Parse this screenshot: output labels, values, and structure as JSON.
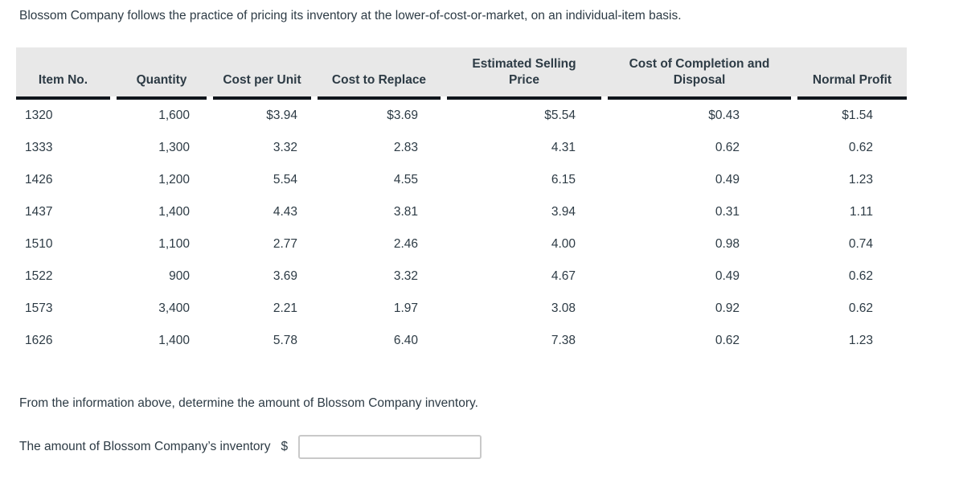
{
  "intro": {
    "text": "Blossom Company follows the practice of pricing its inventory at the lower-of-cost-or-market, on an individual-item basis."
  },
  "table": {
    "columns": [
      "Item No.",
      "Quantity",
      "Cost per Unit",
      "Cost to Replace",
      "Estimated Selling Price",
      "Cost of Completion and Disposal",
      "Normal Profit"
    ],
    "rows": [
      [
        "1320",
        "1,600",
        "$3.94",
        "$3.69",
        "$5.54",
        "$0.43",
        "$1.54"
      ],
      [
        "1333",
        "1,300",
        "3.32",
        "2.83",
        "4.31",
        "0.62",
        "0.62"
      ],
      [
        "1426",
        "1,200",
        "5.54",
        "4.55",
        "6.15",
        "0.49",
        "1.23"
      ],
      [
        "1437",
        "1,400",
        "4.43",
        "3.81",
        "3.94",
        "0.31",
        "1.11"
      ],
      [
        "1510",
        "1,100",
        "2.77",
        "2.46",
        "4.00",
        "0.98",
        "0.74"
      ],
      [
        "1522",
        "900",
        "3.69",
        "3.32",
        "4.67",
        "0.49",
        "0.62"
      ],
      [
        "1573",
        "3,400",
        "2.21",
        "1.97",
        "3.08",
        "0.92",
        "0.62"
      ],
      [
        "1626",
        "1,400",
        "5.78",
        "6.40",
        "7.38",
        "0.62",
        "1.23"
      ]
    ]
  },
  "question": {
    "text": "From the information above, determine the amount of Blossom Company inventory."
  },
  "answer": {
    "label": "The amount of Blossom Company’s inventory",
    "currency_symbol": "$",
    "input_value": ""
  },
  "colors": {
    "text": "#2d3b45",
    "header_bg": "#e8e8e8",
    "underline": "#10161c",
    "input_border": "#c9c9c9"
  }
}
